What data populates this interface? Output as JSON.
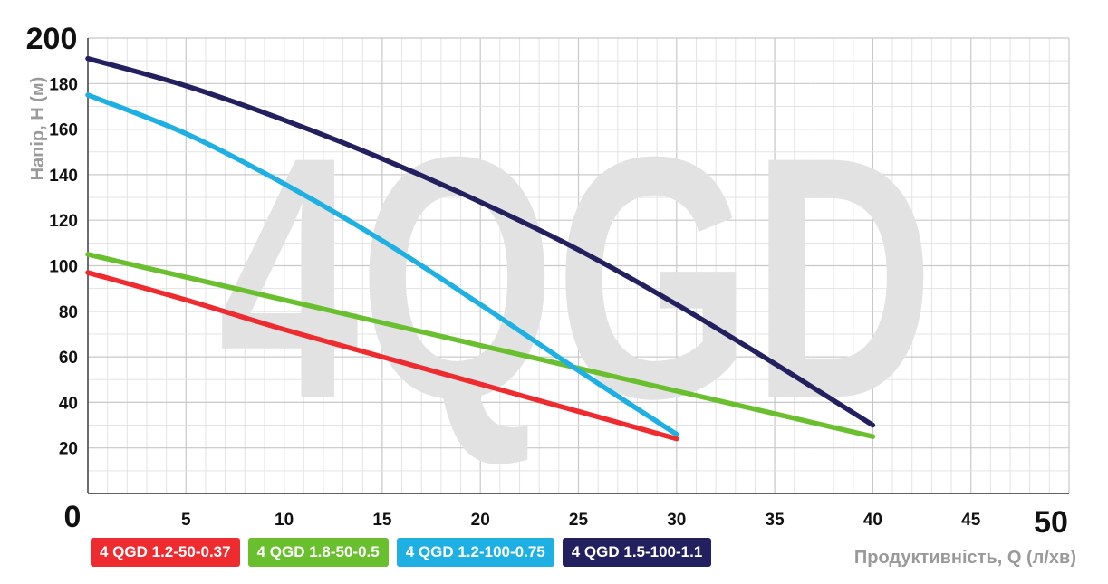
{
  "chart_data": {
    "type": "line",
    "watermark": "4QGD",
    "xlabel": "Продуктивність, Q (л/хв)",
    "ylabel": "Напір, H (м)",
    "xlim": [
      0,
      50
    ],
    "ylim": [
      0,
      200
    ],
    "grid": true,
    "legend_position": "bottom-left",
    "x_ticks": [
      "0",
      "5",
      "10",
      "15",
      "20",
      "25",
      "30",
      "35",
      "40",
      "45",
      "50"
    ],
    "y_ticks": [
      "0",
      "20",
      "40",
      "60",
      "80",
      "100",
      "120",
      "140",
      "160",
      "180",
      "200"
    ],
    "series": [
      {
        "name": "4 QGD 1.2-50-0.37",
        "color": "#ee2b2f",
        "points": [
          [
            0,
            97
          ],
          [
            5,
            85
          ],
          [
            10,
            72
          ],
          [
            15,
            60
          ],
          [
            20,
            48
          ],
          [
            25,
            36
          ],
          [
            30,
            24
          ]
        ]
      },
      {
        "name": "4 QGD 1.8-50-0.5",
        "color": "#6abf2e",
        "points": [
          [
            0,
            105
          ],
          [
            5,
            95
          ],
          [
            10,
            85
          ],
          [
            15,
            75
          ],
          [
            20,
            65
          ],
          [
            25,
            55
          ],
          [
            30,
            45
          ],
          [
            35,
            35
          ],
          [
            40,
            25
          ]
        ]
      },
      {
        "name": "4 QGD 1.2-100-0.75",
        "color": "#1fb0e3",
        "points": [
          [
            0,
            175
          ],
          [
            5,
            158
          ],
          [
            10,
            136
          ],
          [
            15,
            111
          ],
          [
            20,
            83
          ],
          [
            25,
            54
          ],
          [
            30,
            26
          ]
        ]
      },
      {
        "name": "4 QGD 1.5-100-1.1",
        "color": "#232060",
        "points": [
          [
            0,
            191
          ],
          [
            5,
            179
          ],
          [
            10,
            164
          ],
          [
            15,
            147
          ],
          [
            20,
            128
          ],
          [
            25,
            107
          ],
          [
            30,
            83
          ],
          [
            35,
            57
          ],
          [
            40,
            30
          ]
        ]
      }
    ]
  }
}
